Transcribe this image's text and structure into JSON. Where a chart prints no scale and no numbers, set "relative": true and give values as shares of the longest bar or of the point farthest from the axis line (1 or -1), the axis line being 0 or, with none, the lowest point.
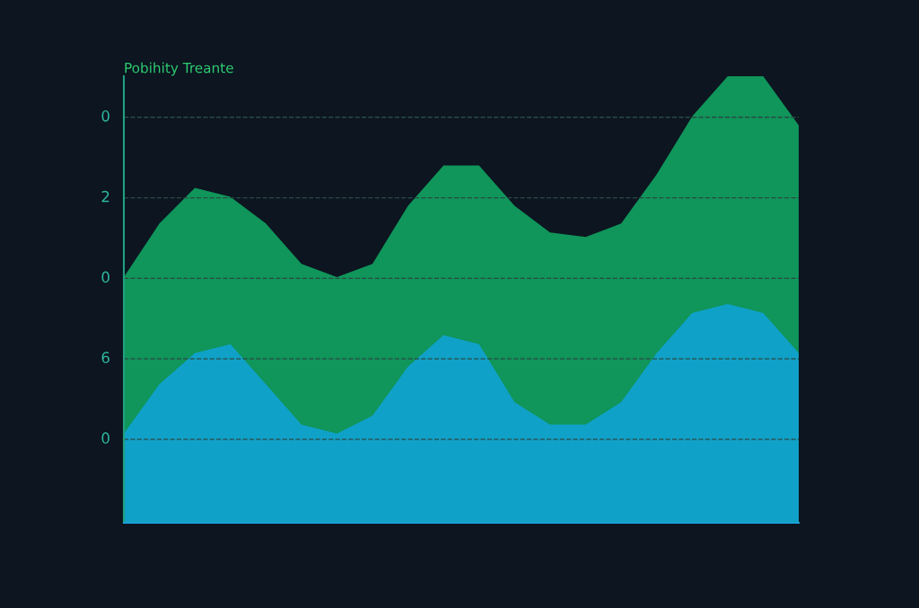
{
  "chart_data": {
    "type": "area",
    "title": "Pobihity Treante",
    "relative": true,
    "categories": [
      null,
      null,
      null,
      null,
      null,
      null,
      null,
      null,
      null,
      null,
      null,
      null,
      null,
      null,
      null,
      null,
      null,
      null,
      null,
      null
    ],
    "series": [
      {
        "color": "#12c06e",
        "values": [
          0.55,
          0.67,
          0.75,
          0.73,
          0.67,
          0.58,
          0.55,
          0.58,
          0.71,
          0.8,
          0.8,
          0.71,
          0.65,
          0.64,
          0.67,
          0.78,
          0.91,
          1,
          1,
          0.89
        ]
      },
      {
        "color": "#10a6ee",
        "values": [
          0.2,
          0.31,
          0.38,
          0.4,
          0.31,
          0.22,
          0.2,
          0.24,
          0.35,
          0.42,
          0.4,
          0.27,
          0.22,
          0.22,
          0.27,
          0.38,
          0.47,
          0.49,
          0.47,
          0.38
        ]
      }
    ],
    "annotations": [
      "0",
      "2",
      "0",
      "6",
      "0"
    ],
    "grid": "y",
    "line_style": "dashed"
  }
}
